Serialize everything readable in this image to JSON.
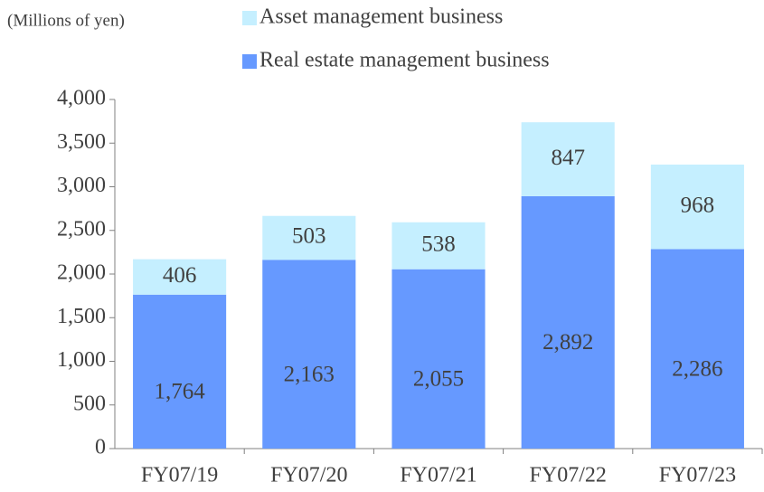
{
  "chart_data": {
    "type": "stacked_bar",
    "unit_label": "(Millions of yen)",
    "categories": [
      "FY07/19",
      "FY07/20",
      "FY07/21",
      "FY07/22",
      "FY07/23"
    ],
    "series": [
      {
        "name": "Real estate management business",
        "color": "#6699ff",
        "values": [
          1764,
          2163,
          2055,
          2892,
          2286
        ],
        "value_labels": [
          "1,764",
          "2,163",
          "2,055",
          "2,892",
          "2,286"
        ]
      },
      {
        "name": "Asset management business",
        "color": "#c5efff",
        "values": [
          406,
          503,
          538,
          847,
          968
        ]
      }
    ],
    "legend_order": [
      1,
      0
    ],
    "ylim": [
      0,
      4000
    ],
    "yticks": [
      0,
      500,
      {
        "value": 1000,
        "label": "1,000"
      },
      {
        "value": 1500,
        "label": "1,500"
      },
      {
        "value": 2000,
        "label": "2,000"
      },
      {
        "value": 2500,
        "label": "2,500"
      },
      {
        "value": 3000,
        "label": "3,000"
      },
      {
        "value": 3500,
        "label": "3,500"
      },
      {
        "value": 4000,
        "label": "4,000"
      }
    ],
    "grid": false
  }
}
